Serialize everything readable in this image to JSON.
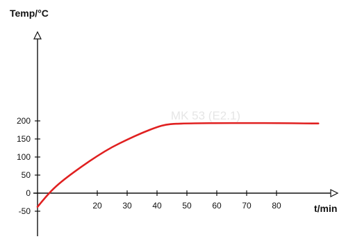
{
  "chart_data": {
    "type": "line",
    "title": "",
    "ylabel": "Temp/°C",
    "xlabel": "t/min",
    "watermark": "MK 53 (E2.1)",
    "xlim": [
      0,
      95
    ],
    "ylim": [
      -60,
      220
    ],
    "x_ticks": [
      20,
      30,
      40,
      50,
      60,
      70,
      80
    ],
    "y_ticks": [
      -50,
      0,
      50,
      100,
      150,
      200
    ],
    "grid": false,
    "legend": "none",
    "series": [
      {
        "color": "#e02020",
        "x": [
          0,
          3,
          6,
          10,
          15,
          20,
          25,
          30,
          35,
          40,
          43,
          46,
          50,
          55,
          60,
          70,
          80,
          90,
          94
        ],
        "y": [
          -38,
          -8,
          18,
          45,
          75,
          103,
          128,
          148,
          167,
          183,
          190,
          192,
          193,
          193.5,
          194,
          194,
          194,
          193,
          193
        ]
      }
    ]
  }
}
